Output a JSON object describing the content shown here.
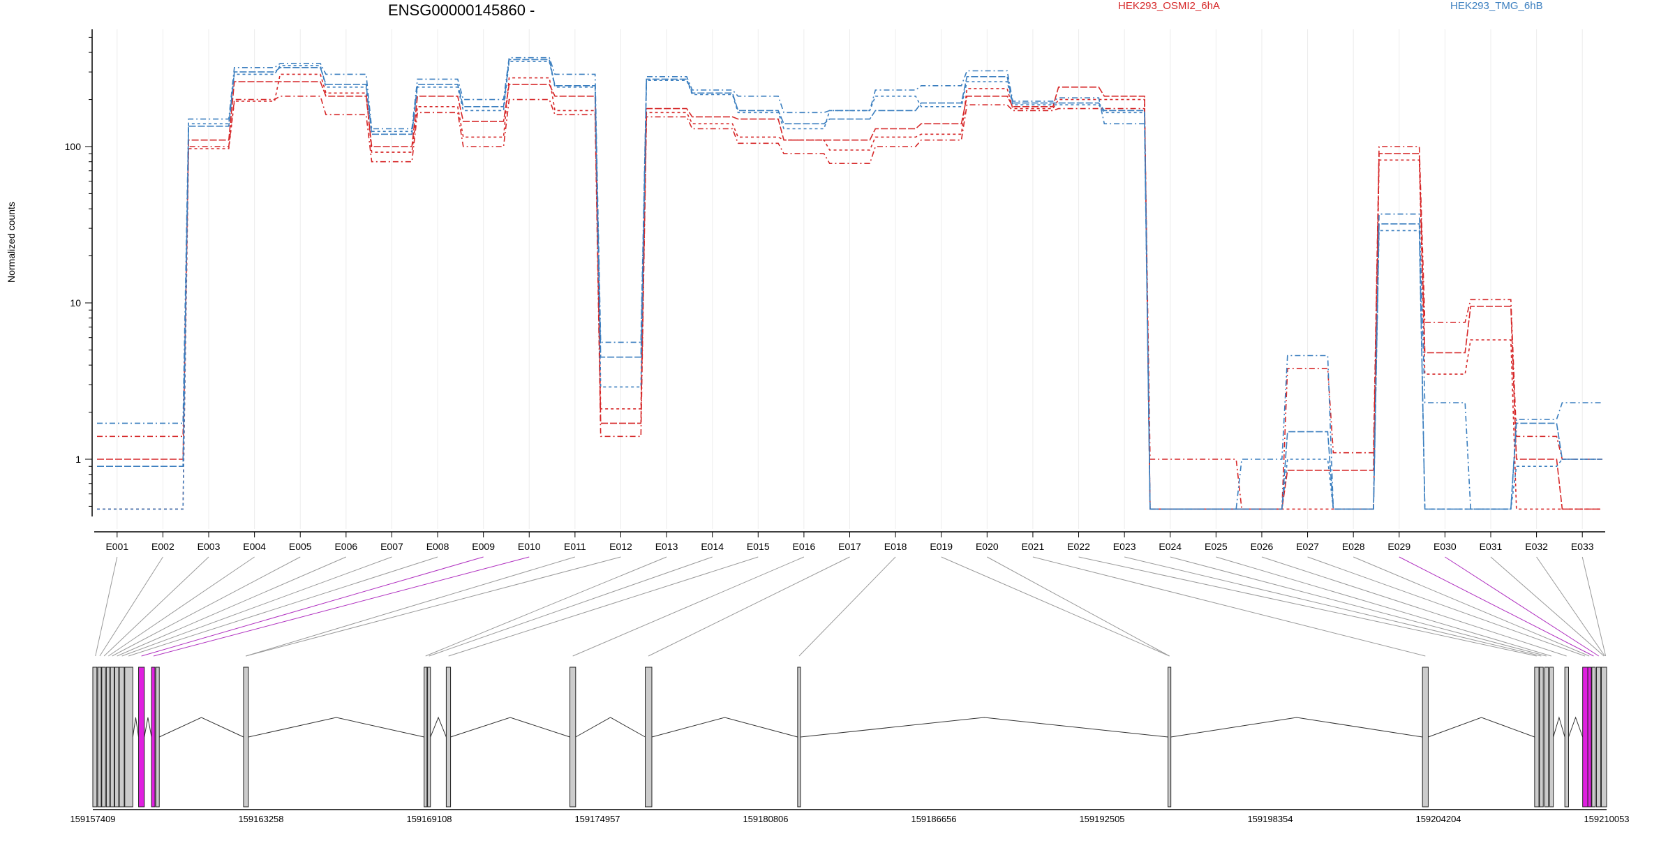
{
  "chart_data": [
    {
      "type": "line",
      "title": "ENSG00000145860 -",
      "ylabel": "Normalized counts",
      "y_scale": "log",
      "y_ticks": [
        "1",
        "10",
        "100"
      ],
      "y_tick_values": [
        1,
        10,
        100
      ],
      "categories": [
        "E001",
        "E002",
        "E003",
        "E004",
        "E005",
        "E006",
        "E007",
        "E008",
        "E009",
        "E010",
        "E011",
        "E012",
        "E013",
        "E014",
        "E015",
        "E016",
        "E017",
        "E018",
        "E019",
        "E020",
        "E021",
        "E022",
        "E023",
        "E024",
        "E025",
        "E026",
        "E027",
        "E028",
        "E029",
        "E030",
        "E031",
        "E032",
        "E033"
      ],
      "legend": [
        {
          "name": "HEK293_OSMI2_6hA",
          "color": "#d62728"
        },
        {
          "name": "HEK293_TMG_6hB",
          "color": "#3a7ebf"
        }
      ],
      "series": [
        {
          "group": "HEK293_OSMI2_6hA",
          "color": "#d62728",
          "values": [
            1.4,
            1.4,
            100,
            200,
            210,
            160,
            80,
            165,
            100,
            200,
            160,
            1.4,
            155,
            130,
            105,
            90,
            78,
            100,
            110,
            185,
            170,
            175,
            175,
            1.0,
            1.0,
            0.48,
            3.8,
            1.1,
            100,
            7.5,
            10.5,
            1.4,
            1.0
          ]
        },
        {
          "group": "HEK293_OSMI2_6hA",
          "color": "#d62728",
          "values": [
            1.0,
            1.0,
            110,
            260,
            260,
            210,
            100,
            210,
            145,
            250,
            210,
            1.7,
            175,
            155,
            150,
            110,
            110,
            130,
            140,
            210,
            180,
            240,
            210,
            0.48,
            0.48,
            0.48,
            0.85,
            0.85,
            90,
            4.8,
            9.5,
            1.0,
            0.48
          ]
        },
        {
          "group": "HEK293_OSMI2_6hA",
          "color": "#d62728",
          "values": [
            0.48,
            0.48,
            97,
            195,
            290,
            220,
            92,
            180,
            115,
            275,
            170,
            2.1,
            165,
            140,
            115,
            110,
            95,
            115,
            120,
            235,
            175,
            200,
            200,
            0.48,
            0.48,
            0.48,
            0.48,
            0.48,
            82,
            3.5,
            5.8,
            0.48,
            0.48
          ]
        },
        {
          "group": "HEK293_TMG_6hB",
          "color": "#3a7ebf",
          "values": [
            1.7,
            1.7,
            150,
            320,
            340,
            290,
            130,
            270,
            200,
            370,
            290,
            5.6,
            280,
            230,
            210,
            165,
            170,
            230,
            245,
            305,
            195,
            205,
            140,
            0.48,
            0.48,
            1.0,
            4.6,
            0.48,
            37,
            2.3,
            0.48,
            1.8,
            2.3
          ]
        },
        {
          "group": "HEK293_TMG_6hB",
          "color": "#3a7ebf",
          "values": [
            0.9,
            0.9,
            135,
            300,
            320,
            250,
            120,
            250,
            180,
            360,
            245,
            4.5,
            270,
            220,
            170,
            140,
            150,
            170,
            190,
            280,
            190,
            190,
            170,
            0.48,
            0.48,
            0.48,
            1.5,
            0.48,
            32,
            0.48,
            0.48,
            1.7,
            1.0
          ]
        },
        {
          "group": "HEK293_TMG_6hB",
          "color": "#3a7ebf",
          "values": [
            0.48,
            0.48,
            140,
            290,
            330,
            240,
            125,
            240,
            170,
            350,
            240,
            2.9,
            265,
            215,
            165,
            130,
            170,
            210,
            180,
            260,
            185,
            185,
            165,
            0.48,
            0.48,
            0.48,
            1.0,
            0.48,
            29,
            0.48,
            0.48,
            0.9,
            1.0
          ]
        }
      ]
    },
    {
      "type": "diagram",
      "genomic_ticks": [
        "159157409",
        "159163258",
        "159169108",
        "159174957",
        "159180806",
        "159186656",
        "159192505",
        "159198354",
        "159204204",
        "159210053"
      ],
      "genomic_tick_values": [
        159157409,
        159163258,
        159169108,
        159174957,
        159180806,
        159186656,
        159192505,
        159198354,
        159204204,
        159210053
      ],
      "highlight_color": "#e020e0",
      "exon_fill": "#cccccc",
      "exons": [
        {
          "id": "E001",
          "start": 159157409,
          "end": 159157550,
          "highlight": false
        },
        {
          "id": "E002",
          "start": 159157580,
          "end": 159157700,
          "highlight": false
        },
        {
          "id": "E003",
          "start": 159157720,
          "end": 159157850,
          "highlight": false
        },
        {
          "id": "E004",
          "start": 159157880,
          "end": 159158000,
          "highlight": false
        },
        {
          "id": "E005",
          "start": 159158020,
          "end": 159158150,
          "highlight": false
        },
        {
          "id": "E006",
          "start": 159158170,
          "end": 159158310,
          "highlight": false
        },
        {
          "id": "E007",
          "start": 159158330,
          "end": 159158500,
          "highlight": false
        },
        {
          "id": "E008",
          "start": 159158520,
          "end": 159158800,
          "highlight": false
        },
        {
          "id": "E009",
          "start": 159159000,
          "end": 159159200,
          "highlight": true
        },
        {
          "id": "E010",
          "start": 159159450,
          "end": 159159570,
          "highlight": true
        },
        {
          "id": "E011",
          "start": 159159600,
          "end": 159159720,
          "highlight": false
        },
        {
          "id": "E012",
          "start": 159162650,
          "end": 159162820,
          "highlight": false
        },
        {
          "id": "E013",
          "start": 159168930,
          "end": 159169030,
          "highlight": false
        },
        {
          "id": "E014",
          "start": 159169050,
          "end": 159169150,
          "highlight": false
        },
        {
          "id": "E015",
          "start": 159169700,
          "end": 159169850,
          "highlight": false
        },
        {
          "id": "E016",
          "start": 159174000,
          "end": 159174200,
          "highlight": false
        },
        {
          "id": "E017",
          "start": 159176620,
          "end": 159176850,
          "highlight": false
        },
        {
          "id": "E018",
          "start": 159181920,
          "end": 159182020,
          "highlight": false
        },
        {
          "id": "E019",
          "start": 159194800,
          "end": 159194900,
          "highlight": false
        },
        {
          "id": "E020",
          "start": 159203650,
          "end": 159203850,
          "highlight": false
        },
        {
          "id": "E021",
          "start": 159207550,
          "end": 159207700,
          "highlight": false
        },
        {
          "id": "E022",
          "start": 159207720,
          "end": 159207850,
          "highlight": false
        },
        {
          "id": "E023",
          "start": 159207900,
          "end": 159208030,
          "highlight": false
        },
        {
          "id": "E024",
          "start": 159208070,
          "end": 159208200,
          "highlight": false
        },
        {
          "id": "E025",
          "start": 159208600,
          "end": 159208730,
          "highlight": false
        },
        {
          "id": "E026",
          "start": 159209220,
          "end": 159209400,
          "highlight": true
        },
        {
          "id": "E027",
          "start": 159209400,
          "end": 159209520,
          "highlight": true
        },
        {
          "id": "E028",
          "start": 159209540,
          "end": 159209660,
          "highlight": false
        },
        {
          "id": "E029",
          "start": 159209700,
          "end": 159209850,
          "highlight": false
        },
        {
          "id": "E030",
          "start": 159209870,
          "end": 159210053,
          "highlight": false
        }
      ],
      "connector_targets": [
        159157500,
        159157650,
        159157800,
        159157950,
        159158080,
        159158250,
        159158420,
        159158650,
        159159100,
        159159520,
        159162730,
        159162730,
        159168980,
        159169100,
        159169780,
        159174100,
        159176730,
        159181970,
        159194850,
        159194850,
        159203750,
        159207620,
        159207780,
        159207960,
        159208130,
        159208660,
        159209300,
        159209450,
        159209600,
        159209780,
        159209960,
        159209990,
        159210020
      ],
      "connector_highlight": [
        false,
        false,
        false,
        false,
        false,
        false,
        false,
        false,
        true,
        true,
        false,
        false,
        false,
        false,
        false,
        false,
        false,
        false,
        false,
        false,
        false,
        false,
        false,
        false,
        false,
        false,
        false,
        false,
        true,
        true,
        false,
        false,
        false
      ]
    }
  ]
}
